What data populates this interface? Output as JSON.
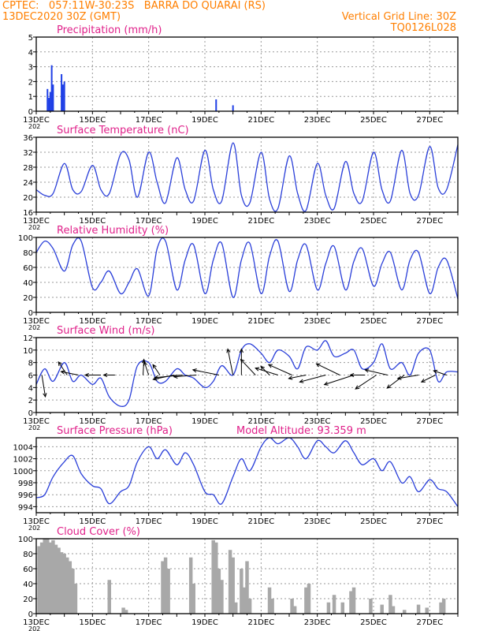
{
  "header": {
    "line1_left": "CPTEC:   057:11W-30:23S   BARRA DO QUARAI (RS)",
    "line2_left": "13DEC2020 30Z (GMT)",
    "line2_right": "Vertical Grid Line: 30Z",
    "line3_right": "TQ0126L028"
  },
  "colors": {
    "header": "#ff7f00",
    "title": "#e0218a",
    "series": "#2a3fd9",
    "precip_bars": "#1f3fe6",
    "cloud_bars": "#a8a8a8",
    "grid": "#9a9a9a"
  },
  "x_axis": {
    "start_day": 13,
    "end_day": 28,
    "tick_labels": [
      "13DEC",
      "15DEC",
      "17DEC",
      "19DEC",
      "21DEC",
      "23DEC",
      "25DEC",
      "27DEC"
    ],
    "tick_days": [
      13,
      15,
      17,
      19,
      21,
      23,
      25,
      27
    ],
    "year_stub": "202"
  },
  "chart_data": [
    {
      "type": "bar",
      "title": "Precipitation (mm/h)",
      "ylim": [
        0,
        5
      ],
      "yticks": [
        0,
        1,
        2,
        3,
        4,
        5
      ],
      "x_unit": "day of December 2020",
      "points": [
        [
          13.4,
          1.5
        ],
        [
          13.45,
          0.9
        ],
        [
          13.5,
          1.3
        ],
        [
          13.55,
          3.1
        ],
        [
          13.6,
          1.8
        ],
        [
          13.9,
          2.5
        ],
        [
          13.95,
          1.8
        ],
        [
          14.0,
          2.0
        ],
        [
          19.4,
          0.8
        ],
        [
          20.0,
          0.4
        ]
      ]
    },
    {
      "type": "line",
      "title": "Surface Temperature (nC)",
      "ylim": [
        16,
        36
      ],
      "yticks": [
        16,
        20,
        24,
        28,
        32,
        36
      ],
      "x": [
        13.0,
        13.3,
        13.6,
        14.0,
        14.3,
        14.6,
        15.0,
        15.3,
        15.6,
        16.0,
        16.3,
        16.6,
        17.0,
        17.3,
        17.6,
        18.0,
        18.3,
        18.6,
        19.0,
        19.3,
        19.6,
        20.0,
        20.3,
        20.6,
        21.0,
        21.3,
        21.6,
        22.0,
        22.3,
        22.6,
        23.0,
        23.3,
        23.6,
        24.0,
        24.3,
        24.6,
        25.0,
        25.3,
        25.6,
        26.0,
        26.3,
        26.6,
        27.0,
        27.3,
        27.6,
        28.0
      ],
      "y": [
        22,
        20.5,
        21,
        29,
        22,
        21.5,
        28.5,
        22,
        21,
        31.5,
        30,
        20,
        32,
        24,
        18.5,
        30.5,
        22,
        19,
        32.5,
        22,
        19,
        34.5,
        20.5,
        18.5,
        32,
        19.5,
        17,
        31,
        21,
        16.5,
        29,
        20.5,
        17,
        29.5,
        21,
        19,
        32,
        22,
        19,
        32.5,
        21,
        20.5,
        33.5,
        22.5,
        22,
        34
      ]
    },
    {
      "type": "line",
      "title": "Relative Humidity (%)",
      "ylim": [
        0,
        100
      ],
      "yticks": [
        0,
        20,
        40,
        60,
        80,
        100
      ],
      "x": [
        13.0,
        13.3,
        13.6,
        14.0,
        14.3,
        14.6,
        15.0,
        15.3,
        15.6,
        16.0,
        16.3,
        16.6,
        17.0,
        17.3,
        17.6,
        18.0,
        18.3,
        18.6,
        19.0,
        19.3,
        19.6,
        20.0,
        20.3,
        20.6,
        21.0,
        21.3,
        21.6,
        22.0,
        22.3,
        22.6,
        23.0,
        23.3,
        23.6,
        24.0,
        24.3,
        24.6,
        25.0,
        25.3,
        25.6,
        26.0,
        26.3,
        26.6,
        27.0,
        27.3,
        27.6,
        28.0
      ],
      "y": [
        80,
        95,
        85,
        55,
        90,
        95,
        33,
        40,
        55,
        25,
        40,
        58,
        22,
        85,
        95,
        30,
        70,
        90,
        25,
        70,
        92,
        20,
        70,
        92,
        25,
        75,
        95,
        28,
        70,
        90,
        30,
        65,
        88,
        30,
        68,
        85,
        35,
        65,
        80,
        30,
        70,
        80,
        25,
        60,
        70,
        18
      ]
    },
    {
      "type": "line",
      "title": "Surface Wind (m/s)",
      "ylim": [
        0,
        12
      ],
      "yticks": [
        0,
        2,
        4,
        6,
        8,
        10,
        12
      ],
      "x": [
        13.0,
        13.3,
        13.6,
        14.0,
        14.3,
        14.6,
        15.0,
        15.3,
        15.6,
        16.0,
        16.3,
        16.6,
        17.0,
        17.3,
        17.6,
        18.0,
        18.3,
        18.6,
        19.0,
        19.3,
        19.6,
        20.0,
        20.3,
        20.6,
        21.0,
        21.3,
        21.6,
        22.0,
        22.3,
        22.6,
        23.0,
        23.3,
        23.6,
        24.0,
        24.3,
        24.6,
        25.0,
        25.3,
        25.6,
        26.0,
        26.3,
        26.6,
        27.0,
        27.3,
        27.6,
        28.0
      ],
      "y": [
        4.5,
        7,
        5,
        8,
        5,
        6,
        4.5,
        5.5,
        2.5,
        1,
        2,
        7.5,
        8,
        5,
        5,
        7,
        6,
        5.5,
        4,
        5,
        7.5,
        6,
        10,
        11,
        9.5,
        8,
        10,
        9,
        7,
        10.5,
        10,
        11.5,
        9,
        9.5,
        10,
        7,
        8,
        11,
        7,
        8,
        6,
        9.5,
        10,
        5,
        6.5,
        6.5
      ],
      "vectors": [
        {
          "day": 13.2,
          "u": 0.4,
          "v": -2.5
        },
        {
          "day": 14.1,
          "u": -1.0,
          "v": 1.5
        },
        {
          "day": 14.5,
          "u": -2.0,
          "v": 0.4
        },
        {
          "day": 15.3,
          "u": -1.8,
          "v": 0.0
        },
        {
          "day": 15.8,
          "u": -1.3,
          "v": 0.0
        },
        {
          "day": 16.8,
          "u": 0.1,
          "v": 1.8
        },
        {
          "day": 17.0,
          "u": -0.5,
          "v": 1.5
        },
        {
          "day": 17.4,
          "u": -0.8,
          "v": 1.2
        },
        {
          "day": 17.9,
          "u": -2.4,
          "v": -0.5
        },
        {
          "day": 18.2,
          "u": -3.2,
          "v": -0.3
        },
        {
          "day": 18.7,
          "u": -2.6,
          "v": -0.2
        },
        {
          "day": 19.5,
          "u": -3.0,
          "v": 0.6
        },
        {
          "day": 20.0,
          "u": -0.6,
          "v": 3.0
        },
        {
          "day": 20.3,
          "u": 0.0,
          "v": 3.0
        },
        {
          "day": 20.8,
          "u": -1.7,
          "v": 1.8
        },
        {
          "day": 21.3,
          "u": -1.0,
          "v": 1.0
        },
        {
          "day": 21.6,
          "u": -2.6,
          "v": 0.8
        },
        {
          "day": 22.1,
          "u": -2.7,
          "v": 1.2
        },
        {
          "day": 22.6,
          "u": -2.0,
          "v": -0.4
        },
        {
          "day": 23.3,
          "u": -3.0,
          "v": -0.8
        },
        {
          "day": 23.8,
          "u": -2.7,
          "v": 1.3
        },
        {
          "day": 24.3,
          "u": -3.4,
          "v": -1.1
        },
        {
          "day": 24.7,
          "u": -1.7,
          "v": 0.0
        },
        {
          "day": 25.1,
          "u": -2.4,
          "v": -1.6
        },
        {
          "day": 25.5,
          "u": -2.6,
          "v": 0.6
        },
        {
          "day": 26.1,
          "u": -2.0,
          "v": -1.5
        },
        {
          "day": 26.6,
          "u": -2.4,
          "v": -0.4
        },
        {
          "day": 27.2,
          "u": -1.6,
          "v": -0.8
        },
        {
          "day": 27.6,
          "u": -1.5,
          "v": 0.5
        }
      ]
    },
    {
      "type": "line",
      "title": "Surface Pressure (hPa)",
      "annotation": "Model Altitude: 93.359  m",
      "ylim": [
        993,
        1005.5
      ],
      "yticks": [
        994,
        996,
        998,
        1000,
        1002,
        1004
      ],
      "x": [
        13.0,
        13.3,
        13.6,
        14.0,
        14.3,
        14.6,
        15.0,
        15.3,
        15.6,
        16.0,
        16.3,
        16.6,
        17.0,
        17.3,
        17.6,
        18.0,
        18.3,
        18.6,
        19.0,
        19.3,
        19.6,
        20.0,
        20.3,
        20.6,
        21.0,
        21.3,
        21.6,
        22.0,
        22.3,
        22.6,
        23.0,
        23.3,
        23.6,
        24.0,
        24.3,
        24.6,
        25.0,
        25.3,
        25.6,
        26.0,
        26.3,
        26.6,
        27.0,
        27.3,
        27.6,
        28.0
      ],
      "y": [
        995.5,
        996,
        999,
        1001.5,
        1002.5,
        999.5,
        997.5,
        997,
        994.5,
        996.5,
        997.5,
        1001.5,
        1004,
        1002,
        1003.5,
        1001,
        1003,
        1001,
        996.5,
        996,
        994.5,
        999,
        1002,
        1000,
        1004,
        1005.5,
        1004.5,
        1005.5,
        1004,
        1002,
        1005,
        1004,
        1003,
        1005,
        1003,
        1001,
        1002,
        1000,
        1001.5,
        998,
        999,
        996.5,
        998.5,
        997,
        996.5,
        994
      ]
    },
    {
      "type": "bar",
      "title": "Cloud Cover (%)",
      "ylim": [
        0,
        100
      ],
      "yticks": [
        0,
        20,
        40,
        60,
        80,
        100
      ],
      "x_unit": "day of December 2020",
      "points": [
        [
          13.1,
          90
        ],
        [
          13.2,
          95
        ],
        [
          13.3,
          100
        ],
        [
          13.4,
          100
        ],
        [
          13.5,
          95
        ],
        [
          13.6,
          98
        ],
        [
          13.7,
          92
        ],
        [
          13.8,
          88
        ],
        [
          13.9,
          82
        ],
        [
          14.0,
          80
        ],
        [
          14.1,
          75
        ],
        [
          14.2,
          70
        ],
        [
          14.3,
          60
        ],
        [
          14.4,
          40
        ],
        [
          15.6,
          45
        ],
        [
          16.1,
          8
        ],
        [
          16.2,
          5
        ],
        [
          17.5,
          70
        ],
        [
          17.6,
          75
        ],
        [
          17.7,
          60
        ],
        [
          18.5,
          75
        ],
        [
          18.6,
          40
        ],
        [
          19.3,
          98
        ],
        [
          19.4,
          95
        ],
        [
          19.5,
          60
        ],
        [
          19.6,
          45
        ],
        [
          19.9,
          85
        ],
        [
          20.0,
          75
        ],
        [
          20.1,
          15
        ],
        [
          20.3,
          60
        ],
        [
          20.4,
          35
        ],
        [
          20.5,
          70
        ],
        [
          20.6,
          20
        ],
        [
          21.3,
          35
        ],
        [
          21.4,
          20
        ],
        [
          22.1,
          20
        ],
        [
          22.2,
          10
        ],
        [
          22.6,
          35
        ],
        [
          22.7,
          40
        ],
        [
          23.4,
          15
        ],
        [
          23.6,
          25
        ],
        [
          23.9,
          15
        ],
        [
          24.2,
          30
        ],
        [
          24.3,
          35
        ],
        [
          24.9,
          20
        ],
        [
          25.3,
          12
        ],
        [
          25.6,
          25
        ],
        [
          25.7,
          10
        ],
        [
          26.1,
          5
        ],
        [
          26.6,
          12
        ],
        [
          26.9,
          8
        ],
        [
          27.4,
          15
        ],
        [
          27.5,
          20
        ]
      ]
    }
  ]
}
